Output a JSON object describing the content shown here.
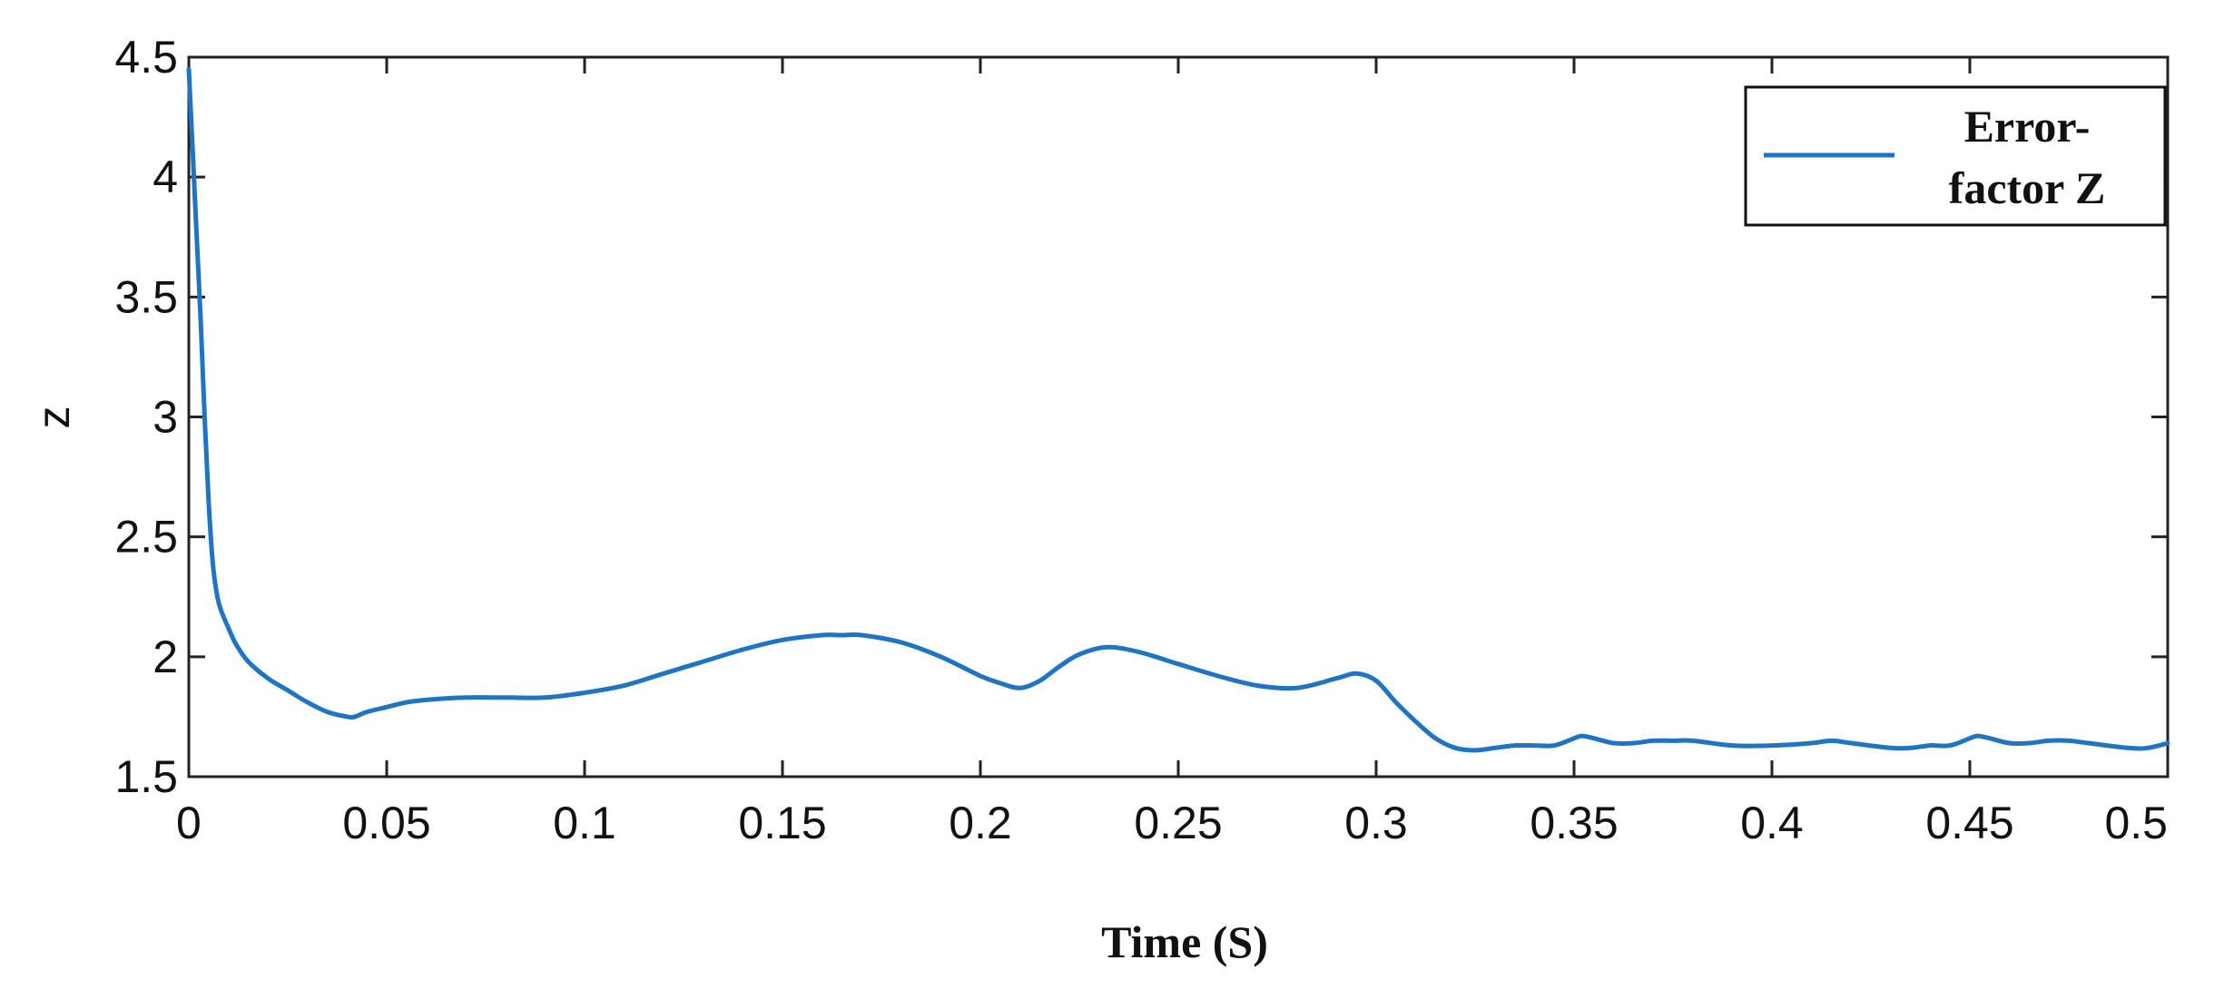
{
  "chart_data": {
    "type": "line",
    "title": "",
    "xlabel": "Time (S)",
    "ylabel": "z",
    "xlim": [
      0,
      0.5
    ],
    "ylim": [
      1.5,
      4.5
    ],
    "xticks": [
      {
        "value": 0,
        "label": "0"
      },
      {
        "value": 0.05,
        "label": "0.05"
      },
      {
        "value": 0.1,
        "label": "0.1"
      },
      {
        "value": 0.15,
        "label": "0.15"
      },
      {
        "value": 0.2,
        "label": "0.2"
      },
      {
        "value": 0.25,
        "label": "0.25"
      },
      {
        "value": 0.3,
        "label": "0.3"
      },
      {
        "value": 0.35,
        "label": "0.35"
      },
      {
        "value": 0.4,
        "label": "0.4"
      },
      {
        "value": 0.45,
        "label": "0.45"
      },
      {
        "value": 0.5,
        "label": "0.5"
      }
    ],
    "yticks": [
      {
        "value": 1.5,
        "label": "1.5"
      },
      {
        "value": 2,
        "label": "2"
      },
      {
        "value": 2.5,
        "label": "2.5"
      },
      {
        "value": 3,
        "label": "3"
      },
      {
        "value": 3.5,
        "label": "3.5"
      },
      {
        "value": 4,
        "label": "4"
      },
      {
        "value": 4.5,
        "label": "4.5"
      }
    ],
    "grid": false,
    "legend": {
      "position": "top-right",
      "lines": [
        "Error-",
        "factor Z"
      ]
    },
    "series": [
      {
        "name": "Error-factor Z",
        "color": "#1f74c4",
        "x": [
          0,
          0.001,
          0.002,
          0.003,
          0.004,
          0.005,
          0.006,
          0.007,
          0.008,
          0.01,
          0.012,
          0.015,
          0.02,
          0.025,
          0.03,
          0.035,
          0.04,
          0.042,
          0.045,
          0.05,
          0.055,
          0.06,
          0.07,
          0.08,
          0.09,
          0.1,
          0.11,
          0.12,
          0.13,
          0.14,
          0.15,
          0.16,
          0.165,
          0.17,
          0.18,
          0.19,
          0.2,
          0.205,
          0.21,
          0.215,
          0.22,
          0.225,
          0.232,
          0.24,
          0.25,
          0.26,
          0.27,
          0.28,
          0.29,
          0.295,
          0.3,
          0.305,
          0.31,
          0.315,
          0.32,
          0.325,
          0.33,
          0.335,
          0.34,
          0.345,
          0.35,
          0.352,
          0.355,
          0.36,
          0.365,
          0.37,
          0.375,
          0.38,
          0.39,
          0.4,
          0.41,
          0.415,
          0.42,
          0.43,
          0.435,
          0.44,
          0.445,
          0.45,
          0.452,
          0.455,
          0.46,
          0.465,
          0.47,
          0.475,
          0.48,
          0.49,
          0.495,
          0.5
        ],
        "y": [
          4.45,
          4.1,
          3.75,
          3.4,
          3.0,
          2.65,
          2.4,
          2.27,
          2.2,
          2.12,
          2.05,
          1.98,
          1.91,
          1.86,
          1.81,
          1.77,
          1.75,
          1.75,
          1.77,
          1.79,
          1.81,
          1.82,
          1.83,
          1.83,
          1.83,
          1.85,
          1.88,
          1.93,
          1.98,
          2.03,
          2.07,
          2.09,
          2.09,
          2.09,
          2.06,
          2.0,
          1.92,
          1.89,
          1.87,
          1.9,
          1.96,
          2.01,
          2.04,
          2.02,
          1.97,
          1.92,
          1.88,
          1.87,
          1.91,
          1.93,
          1.9,
          1.81,
          1.73,
          1.66,
          1.62,
          1.61,
          1.62,
          1.63,
          1.63,
          1.63,
          1.66,
          1.67,
          1.66,
          1.64,
          1.64,
          1.65,
          1.65,
          1.65,
          1.63,
          1.63,
          1.64,
          1.65,
          1.64,
          1.62,
          1.62,
          1.63,
          1.63,
          1.66,
          1.67,
          1.66,
          1.64,
          1.64,
          1.65,
          1.65,
          1.64,
          1.62,
          1.62,
          1.64
        ]
      }
    ]
  }
}
